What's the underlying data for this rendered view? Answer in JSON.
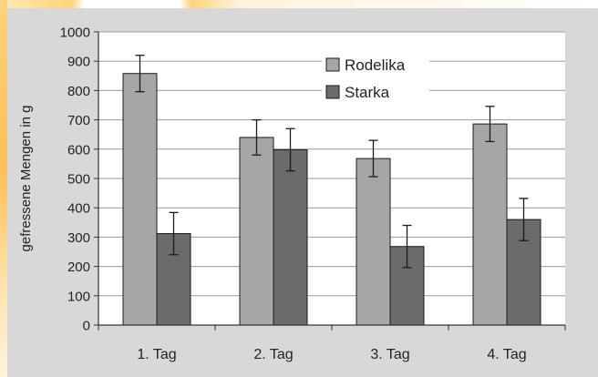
{
  "chart_data": {
    "type": "bar",
    "categories": [
      "1. Tag",
      "2. Tag",
      "3. Tag",
      "4. Tag"
    ],
    "series": [
      {
        "name": "Rodelika",
        "values": [
          858,
          640,
          568,
          686
        ],
        "error": [
          62,
          60,
          62,
          60
        ],
        "color": "#a6a6a6"
      },
      {
        "name": "Starka",
        "values": [
          312,
          598,
          268,
          360
        ],
        "error": [
          72,
          72,
          72,
          72
        ],
        "color": "#6b6b6b"
      }
    ],
    "title": "",
    "xlabel": "",
    "ylabel": "gefressene Mengen in g",
    "ylim": [
      0,
      1000
    ],
    "yticks": [
      0,
      100,
      200,
      300,
      400,
      500,
      600,
      700,
      800,
      900,
      1000
    ],
    "grid": true,
    "legend_position": "top-right"
  }
}
